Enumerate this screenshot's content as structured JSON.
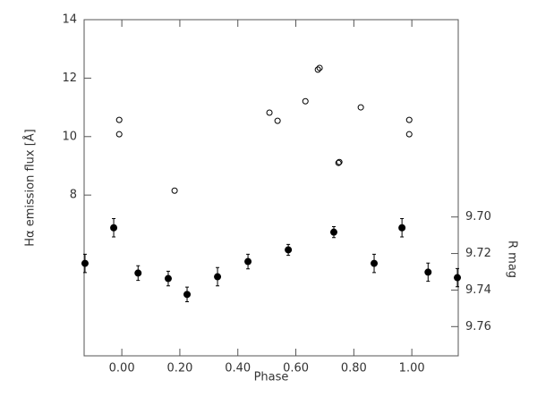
{
  "chart_data": {
    "type": "scatter",
    "xlabel": "Phase",
    "ylabel": "Hα emission flux [Å]",
    "y2label": "R mag",
    "xlim": [
      -0.13,
      1.16
    ],
    "xticks": [
      {
        "value": 0,
        "label": "0.00"
      },
      {
        "value": 0.2,
        "label": "0.20"
      },
      {
        "value": 0.4,
        "label": "0.40"
      },
      {
        "value": 0.6,
        "label": "0.60"
      },
      {
        "value": 0.8,
        "label": "0.80"
      },
      {
        "value": 1,
        "label": "1.00"
      }
    ],
    "ylim": [
      2.5,
      14
    ],
    "yticks": [
      8,
      10,
      12,
      14
    ],
    "y2lim": [
      9.776,
      9.592
    ],
    "y2ticks": [
      {
        "value": 9.7,
        "label": "9.70"
      },
      {
        "value": 9.72,
        "label": "9.72"
      },
      {
        "value": 9.74,
        "label": "9.74"
      },
      {
        "value": 9.76,
        "label": "9.76"
      }
    ],
    "series": [
      {
        "color": "#000000",
        "filled": false,
        "x": [
          -0.009,
          -0.009,
          0.182,
          0.509,
          0.537,
          0.633,
          0.676,
          0.682,
          0.747,
          0.75,
          0.824,
          0.991,
          0.991
        ],
        "values": [
          10.57,
          10.08,
          8.15,
          10.82,
          10.54,
          11.21,
          12.29,
          12.35,
          9.1,
          9.13,
          11.0,
          10.57,
          10.08
        ]
      },
      {
        "color": "#000000",
        "filled": true,
        "axis": "y2",
        "x": [
          -0.127,
          -0.028,
          0.056,
          0.16,
          0.225,
          0.33,
          0.435,
          0.574,
          0.731,
          0.87,
          0.966,
          1.056,
          1.157
        ],
        "values": [
          9.7254,
          9.7059,
          9.7307,
          9.7337,
          9.7424,
          9.7327,
          9.7244,
          9.718,
          9.7083,
          9.7254,
          9.7059,
          9.7302,
          9.7332
        ],
        "errors": [
          0.005,
          0.005,
          0.004,
          0.004,
          0.004,
          0.005,
          0.004,
          0.003,
          0.003,
          0.005,
          0.005,
          0.005,
          0.005
        ]
      }
    ]
  }
}
